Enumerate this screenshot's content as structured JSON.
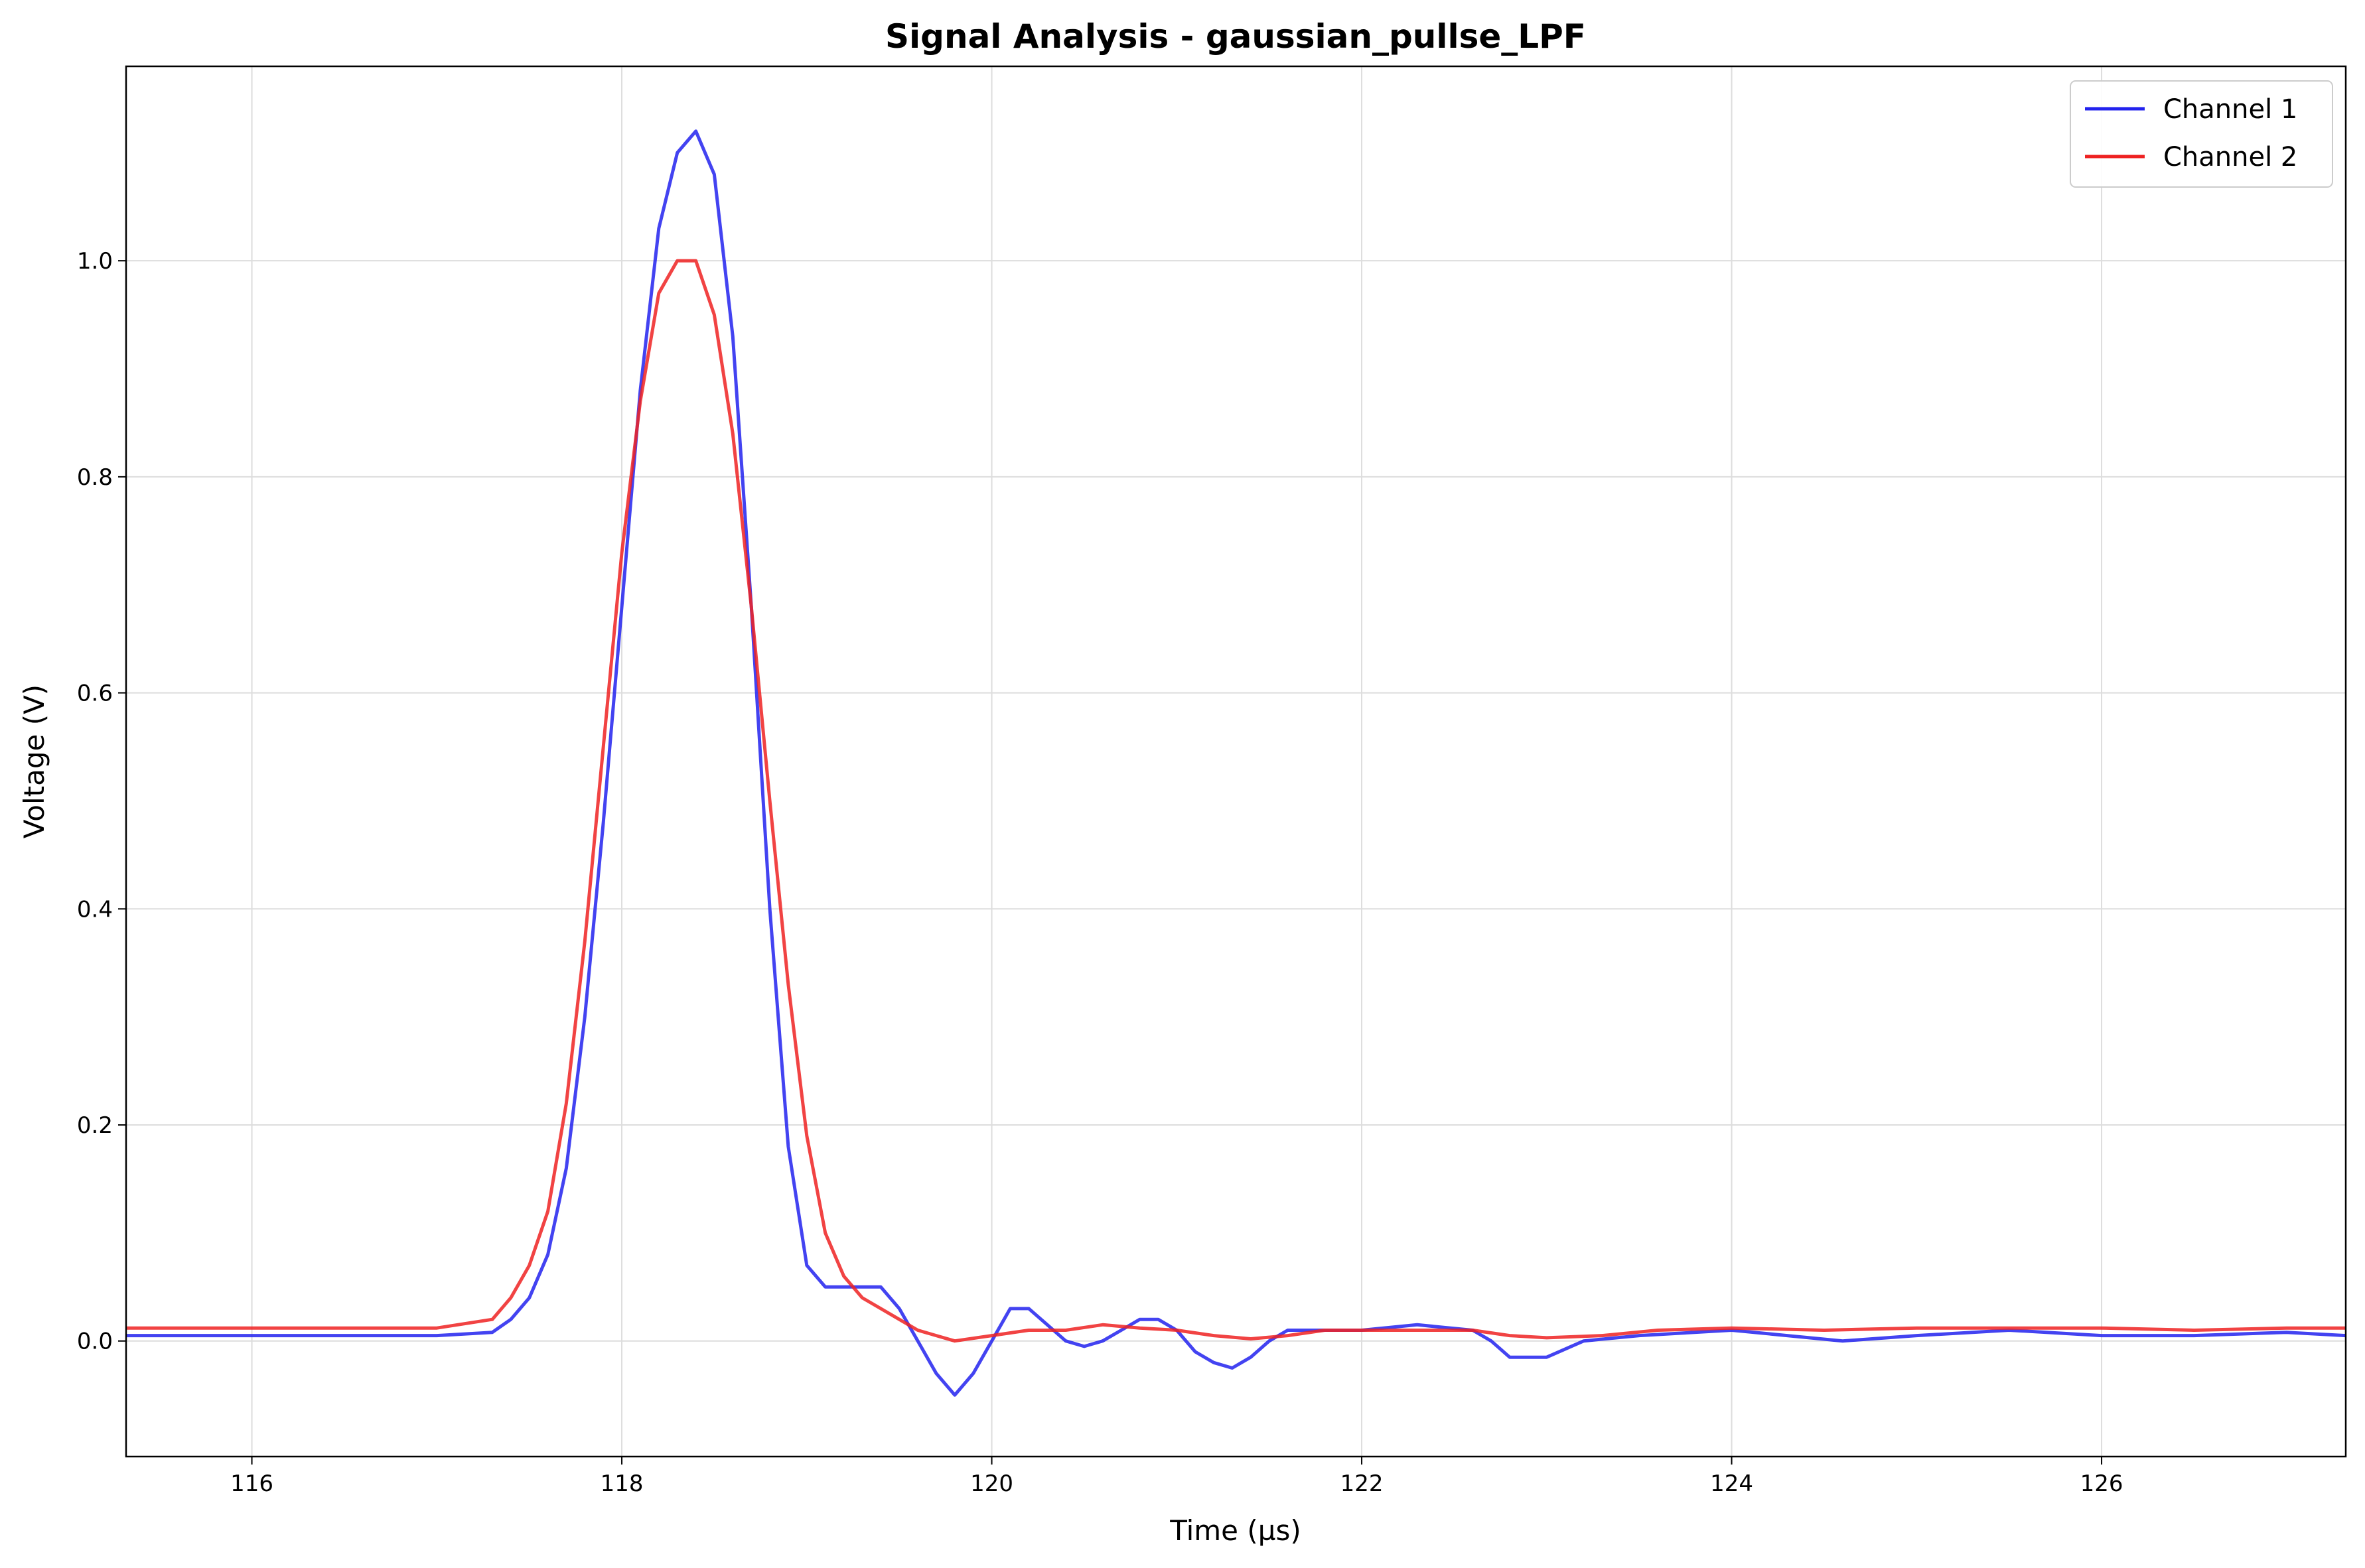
{
  "chart_data": {
    "type": "line",
    "title": "Signal Analysis - gaussian_pullse_LPF",
    "xlabel": "Time (µs)",
    "ylabel": "Voltage (V)",
    "xlim": [
      115.32,
      127.32
    ],
    "ylim": [
      -0.107,
      1.18
    ],
    "xticks": [
      116,
      118,
      120,
      122,
      124,
      126
    ],
    "xtick_labels": [
      "116",
      "118",
      "120",
      "122",
      "124",
      "126"
    ],
    "yticks": [
      0.0,
      0.2,
      0.4,
      0.6,
      0.8,
      1.0
    ],
    "ytick_labels": [
      "0.0",
      "0.2",
      "0.4",
      "0.6",
      "0.8",
      "1.0"
    ],
    "grid": true,
    "legend_position": "top-right",
    "series": [
      {
        "name": "Channel 1",
        "color": "#2222ee",
        "x": [
          115.32,
          116.0,
          116.5,
          117.0,
          117.3,
          117.4,
          117.5,
          117.6,
          117.7,
          117.8,
          117.9,
          118.0,
          118.1,
          118.2,
          118.3,
          118.4,
          118.5,
          118.6,
          118.7,
          118.8,
          118.9,
          119.0,
          119.1,
          119.2,
          119.3,
          119.4,
          119.5,
          119.6,
          119.7,
          119.8,
          119.9,
          120.0,
          120.1,
          120.2,
          120.3,
          120.4,
          120.5,
          120.6,
          120.7,
          120.8,
          120.9,
          121.0,
          121.1,
          121.2,
          121.3,
          121.4,
          121.5,
          121.6,
          121.8,
          122.0,
          122.3,
          122.6,
          122.7,
          122.8,
          123.0,
          123.2,
          123.5,
          124.0,
          124.3,
          124.6,
          125.0,
          125.5,
          126.0,
          126.5,
          127.0,
          127.32
        ],
        "y": [
          0.005,
          0.005,
          0.005,
          0.005,
          0.008,
          0.02,
          0.04,
          0.08,
          0.16,
          0.3,
          0.48,
          0.68,
          0.88,
          1.03,
          1.1,
          1.12,
          1.08,
          0.93,
          0.68,
          0.4,
          0.18,
          0.07,
          0.05,
          0.05,
          0.05,
          0.05,
          0.03,
          0.0,
          -0.03,
          -0.05,
          -0.03,
          0.0,
          0.03,
          0.03,
          0.015,
          0.0,
          -0.005,
          0.0,
          0.01,
          0.02,
          0.02,
          0.01,
          -0.01,
          -0.02,
          -0.025,
          -0.015,
          0.0,
          0.01,
          0.01,
          0.01,
          0.015,
          0.01,
          0.0,
          -0.015,
          -0.015,
          0.0,
          0.005,
          0.01,
          0.005,
          0.0,
          0.005,
          0.01,
          0.005,
          0.005,
          0.008,
          0.005
        ]
      },
      {
        "name": "Channel 2",
        "color": "#ee2222",
        "x": [
          115.32,
          116.0,
          116.5,
          117.0,
          117.3,
          117.4,
          117.5,
          117.6,
          117.7,
          117.8,
          117.9,
          118.0,
          118.1,
          118.2,
          118.3,
          118.4,
          118.5,
          118.6,
          118.7,
          118.8,
          118.9,
          119.0,
          119.1,
          119.2,
          119.3,
          119.4,
          119.5,
          119.6,
          119.7,
          119.8,
          120.0,
          120.2,
          120.4,
          120.6,
          120.8,
          121.0,
          121.2,
          121.4,
          121.6,
          121.8,
          122.0,
          122.3,
          122.6,
          122.8,
          123.0,
          123.3,
          123.6,
          124.0,
          124.5,
          125.0,
          125.5,
          126.0,
          126.5,
          127.0,
          127.32
        ],
        "y": [
          0.012,
          0.012,
          0.012,
          0.012,
          0.02,
          0.04,
          0.07,
          0.12,
          0.22,
          0.37,
          0.55,
          0.73,
          0.87,
          0.97,
          1.0,
          1.0,
          0.95,
          0.84,
          0.68,
          0.5,
          0.33,
          0.19,
          0.1,
          0.06,
          0.04,
          0.03,
          0.02,
          0.01,
          0.005,
          0.0,
          0.005,
          0.01,
          0.01,
          0.015,
          0.012,
          0.01,
          0.005,
          0.002,
          0.005,
          0.01,
          0.01,
          0.01,
          0.01,
          0.005,
          0.003,
          0.005,
          0.01,
          0.012,
          0.01,
          0.012,
          0.012,
          0.012,
          0.01,
          0.012,
          0.012
        ]
      }
    ]
  }
}
